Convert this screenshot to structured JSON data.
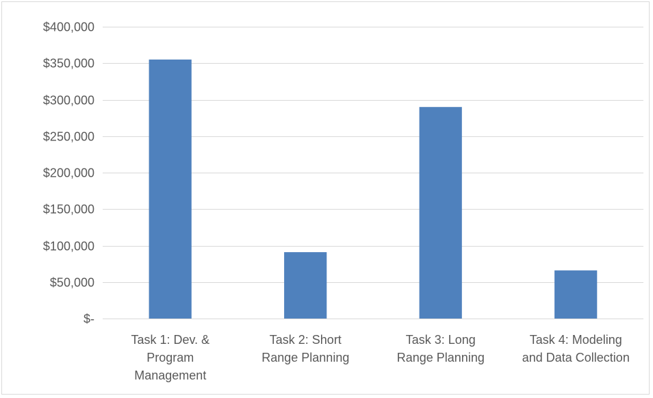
{
  "chart_data": {
    "type": "bar",
    "categories": [
      [
        "Task 1:  Dev. &",
        "Program",
        "Management"
      ],
      [
        "Task 2:  Short",
        "Range Planning"
      ],
      [
        "Task 3:  Long",
        "Range Planning"
      ],
      [
        "Task 4:  Modeling",
        "and Data Collection"
      ]
    ],
    "values": [
      355000,
      91000,
      290000,
      66000
    ],
    "ylim": [
      0,
      400000
    ],
    "yticks": [
      0,
      50000,
      100000,
      150000,
      200000,
      250000,
      300000,
      350000,
      400000
    ],
    "ytick_labels": [
      "$-",
      "$50,000",
      "$100,000",
      "$150,000",
      "$200,000",
      "$250,000",
      "$300,000",
      "$350,000",
      "$400,000"
    ],
    "grid": true,
    "legend": "none",
    "bar_color": "#4f81bd",
    "grid_color": "#d9d9d9",
    "text_color": "#595959"
  }
}
